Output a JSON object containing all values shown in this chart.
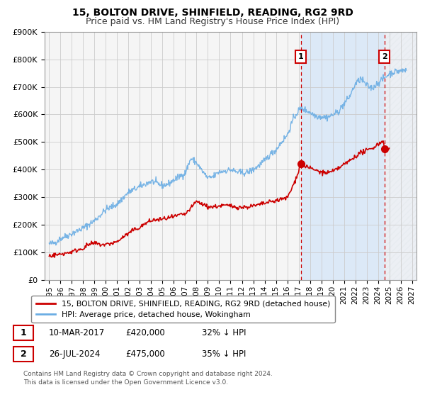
{
  "title": "15, BOLTON DRIVE, SHINFIELD, READING, RG2 9RD",
  "subtitle": "Price paid vs. HM Land Registry's House Price Index (HPI)",
  "ylim": [
    0,
    900000
  ],
  "yticks": [
    0,
    100000,
    200000,
    300000,
    400000,
    500000,
    600000,
    700000,
    800000,
    900000
  ],
  "ytick_labels": [
    "£0",
    "£100K",
    "£200K",
    "£300K",
    "£400K",
    "£500K",
    "£600K",
    "£700K",
    "£800K",
    "£900K"
  ],
  "xlim_start": 1994.6,
  "xlim_end": 2027.4,
  "xtick_years": [
    1995,
    1996,
    1997,
    1998,
    1999,
    2000,
    2001,
    2002,
    2003,
    2004,
    2005,
    2006,
    2007,
    2008,
    2009,
    2010,
    2011,
    2012,
    2013,
    2014,
    2015,
    2016,
    2017,
    2018,
    2019,
    2020,
    2021,
    2022,
    2023,
    2024,
    2025,
    2026,
    2027
  ],
  "hpi_color": "#6aade4",
  "price_color": "#cc0000",
  "annotation_color": "#cc0000",
  "grid_color": "#cccccc",
  "bg_plot_color": "#f5f5f5",
  "shaded_solid_color": "#dce9f7",
  "shaded_hatch_color": "#e8e8e8",
  "event1_x": 2017.19,
  "event1_y": 420000,
  "event1_label": "1",
  "event1_date": "10-MAR-2017",
  "event1_price": "£420,000",
  "event1_hpi": "32% ↓ HPI",
  "event2_x": 2024.57,
  "event2_y": 475000,
  "event2_label": "2",
  "event2_date": "26-JUL-2024",
  "event2_price": "£475,000",
  "event2_hpi": "35% ↓ HPI",
  "legend_entry1": "15, BOLTON DRIVE, SHINFIELD, READING, RG2 9RD (detached house)",
  "legend_entry2": "HPI: Average price, detached house, Wokingham",
  "footer1": "Contains HM Land Registry data © Crown copyright and database right 2024.",
  "footer2": "This data is licensed under the Open Government Licence v3.0.",
  "title_fontsize": 10,
  "subtitle_fontsize": 9
}
